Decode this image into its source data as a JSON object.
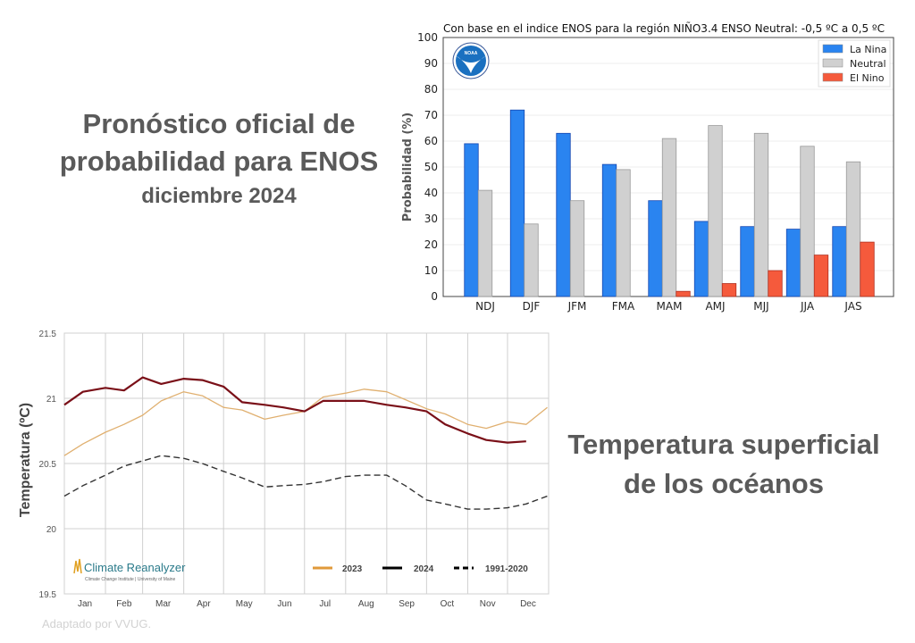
{
  "headline_top": {
    "line1": "Pronóstico oficial de",
    "line2": "probabilidad para ENOS",
    "line3": "diciembre 2024"
  },
  "headline_bottom": {
    "line1": "Temperatura superficial",
    "line2": "de los océanos"
  },
  "credit": "Adaptado por VVUG.",
  "chart_data": [
    {
      "type": "bar",
      "title": "Con base en el indice ENOS para la región NIÑO3.4 ENSO Neutral: -0,5 ºC a 0,5 ºC",
      "xlabel": "",
      "ylabel": "Probabilidad (%)",
      "ylim": [
        0,
        100
      ],
      "yticks": [
        "0",
        "10",
        "20",
        "30",
        "40",
        "50",
        "60",
        "70",
        "80",
        "90",
        "100"
      ],
      "grid": true,
      "legend_position": "top-right",
      "logo": "NOAA",
      "categories": [
        "NDJ",
        "DJF",
        "JFM",
        "FMA",
        "MAM",
        "AMJ",
        "MJJ",
        "JJA",
        "JAS"
      ],
      "series": [
        {
          "name": "La Nina",
          "color": "#2a84f0",
          "values": [
            59,
            72,
            63,
            51,
            37,
            29,
            27,
            26,
            27
          ]
        },
        {
          "name": "Neutral",
          "color": "#d0d0d0",
          "values": [
            41,
            28,
            37,
            49,
            61,
            66,
            63,
            58,
            52
          ]
        },
        {
          "name": "El Nino",
          "color": "#f55a3c",
          "values": [
            0,
            0,
            0,
            0,
            2,
            5,
            10,
            16,
            21
          ]
        }
      ]
    },
    {
      "type": "line",
      "ylabel": "Temperatura (ºC)",
      "ylim": [
        19.5,
        21.5
      ],
      "yticks": [
        "19.5",
        "20",
        "20.5",
        "21",
        "21.5"
      ],
      "xticks": [
        "Jan",
        "Feb",
        "Mar",
        "Apr",
        "May",
        "Jun",
        "Jul",
        "Aug",
        "Sep",
        "Oct",
        "Nov",
        "Dec"
      ],
      "grid": true,
      "legend_position": "bottom-right",
      "logo": {
        "name": "Climate Reanalyzer",
        "sub": "Climate Change Institute | University of Maine"
      },
      "x": [
        "01-01",
        "01-15",
        "02-01",
        "02-15",
        "03-01",
        "03-15",
        "04-01",
        "04-15",
        "05-01",
        "05-15",
        "06-01",
        "06-15",
        "07-01",
        "07-15",
        "08-01",
        "08-15",
        "09-01",
        "09-15",
        "10-01",
        "10-15",
        "11-01",
        "11-15",
        "12-01",
        "12-15",
        "12-31"
      ],
      "series": [
        {
          "name": "2023",
          "color": "#e0b070",
          "style": "solid",
          "values": [
            20.56,
            20.65,
            20.74,
            20.8,
            20.87,
            20.98,
            21.05,
            21.02,
            20.93,
            20.91,
            20.84,
            20.87,
            20.9,
            21.01,
            21.04,
            21.07,
            21.05,
            20.99,
            20.92,
            20.88,
            20.8,
            20.77,
            20.82,
            20.8,
            20.93
          ]
        },
        {
          "name": "2024",
          "color": "#7a1018",
          "style": "solid",
          "values": [
            20.95,
            21.05,
            21.08,
            21.06,
            21.16,
            21.11,
            21.15,
            21.14,
            21.09,
            20.97,
            20.95,
            20.93,
            20.9,
            20.98,
            20.98,
            20.98,
            20.95,
            20.93,
            20.9,
            20.8,
            20.73,
            20.68,
            20.66,
            20.67,
            null
          ]
        },
        {
          "name": "1991-2020",
          "color": "#333333",
          "style": "dashed",
          "values": [
            20.25,
            20.33,
            20.41,
            20.48,
            20.52,
            20.56,
            20.54,
            20.5,
            20.44,
            20.39,
            20.32,
            20.33,
            20.34,
            20.36,
            20.4,
            20.41,
            20.41,
            20.33,
            20.22,
            20.19,
            20.15,
            20.15,
            20.16,
            20.19,
            20.25
          ]
        }
      ]
    }
  ]
}
